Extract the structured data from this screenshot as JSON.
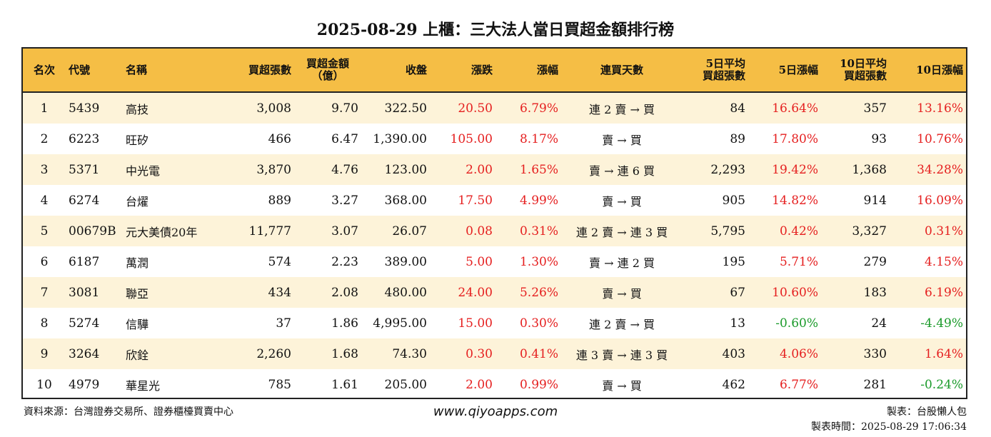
{
  "title": "2025-08-29 上櫃：三大法人當日買超金額排行榜",
  "headers": {
    "rank": "名次",
    "code": "代號",
    "name": "名稱",
    "net_buy_shares": "買超張數",
    "net_buy_amount_l1": "買超金額",
    "net_buy_amount_l2": "（億）",
    "close": "收盤",
    "change": "漲跌",
    "change_pct": "漲幅",
    "streak": "連買天數",
    "avg5_l1": "5日平均",
    "avg5_l2": "買超張數",
    "pct5": "5日漲幅",
    "avg10_l1": "10日平均",
    "avg10_l2": "買超張數",
    "pct10": "10日漲幅"
  },
  "rows": [
    {
      "rank": "1",
      "code": "5439",
      "name": "高技",
      "net_buy_shares": "3,008",
      "net_buy_amount": "9.70",
      "close": "322.50",
      "change": "20.50",
      "change_pct": "6.79%",
      "streak": "連 2 賣 → 買",
      "avg5": "84",
      "pct5": "16.64%",
      "avg10": "357",
      "pct10": "13.16%"
    },
    {
      "rank": "2",
      "code": "6223",
      "name": "旺矽",
      "net_buy_shares": "466",
      "net_buy_amount": "6.47",
      "close": "1,390.00",
      "change": "105.00",
      "change_pct": "8.17%",
      "streak": "賣 → 買",
      "avg5": "89",
      "pct5": "17.80%",
      "avg10": "93",
      "pct10": "10.76%"
    },
    {
      "rank": "3",
      "code": "5371",
      "name": "中光電",
      "net_buy_shares": "3,870",
      "net_buy_amount": "4.76",
      "close": "123.00",
      "change": "2.00",
      "change_pct": "1.65%",
      "streak": "賣 → 連 6 買",
      "avg5": "2,293",
      "pct5": "19.42%",
      "avg10": "1,368",
      "pct10": "34.28%"
    },
    {
      "rank": "4",
      "code": "6274",
      "name": "台燿",
      "net_buy_shares": "889",
      "net_buy_amount": "3.27",
      "close": "368.00",
      "change": "17.50",
      "change_pct": "4.99%",
      "streak": "賣 → 買",
      "avg5": "905",
      "pct5": "14.82%",
      "avg10": "914",
      "pct10": "16.09%"
    },
    {
      "rank": "5",
      "code": "00679B",
      "name": "元大美債20年",
      "net_buy_shares": "11,777",
      "net_buy_amount": "3.07",
      "close": "26.07",
      "change": "0.08",
      "change_pct": "0.31%",
      "streak": "連 2 賣 → 連 3 買",
      "avg5": "5,795",
      "pct5": "0.42%",
      "avg10": "3,327",
      "pct10": "0.31%"
    },
    {
      "rank": "6",
      "code": "6187",
      "name": "萬潤",
      "net_buy_shares": "574",
      "net_buy_amount": "2.23",
      "close": "389.00",
      "change": "5.00",
      "change_pct": "1.30%",
      "streak": "賣 → 連 2 買",
      "avg5": "195",
      "pct5": "5.71%",
      "avg10": "279",
      "pct10": "4.15%"
    },
    {
      "rank": "7",
      "code": "3081",
      "name": "聯亞",
      "net_buy_shares": "434",
      "net_buy_amount": "2.08",
      "close": "480.00",
      "change": "24.00",
      "change_pct": "5.26%",
      "streak": "賣 → 買",
      "avg5": "67",
      "pct5": "10.60%",
      "avg10": "183",
      "pct10": "6.19%"
    },
    {
      "rank": "8",
      "code": "5274",
      "name": "信驊",
      "net_buy_shares": "37",
      "net_buy_amount": "1.86",
      "close": "4,995.00",
      "change": "15.00",
      "change_pct": "0.30%",
      "streak": "連 2 賣 → 買",
      "avg5": "13",
      "pct5": "-0.60%",
      "avg10": "24",
      "pct10": "-4.49%"
    },
    {
      "rank": "9",
      "code": "3264",
      "name": "欣銓",
      "net_buy_shares": "2,260",
      "net_buy_amount": "1.68",
      "close": "74.30",
      "change": "0.30",
      "change_pct": "0.41%",
      "streak": "連 3 賣 → 連 3 買",
      "avg5": "403",
      "pct5": "4.06%",
      "avg10": "330",
      "pct10": "1.64%"
    },
    {
      "rank": "10",
      "code": "4979",
      "name": "華星光",
      "net_buy_shares": "785",
      "net_buy_amount": "1.61",
      "close": "205.00",
      "change": "2.00",
      "change_pct": "0.99%",
      "streak": "賣 → 買",
      "avg5": "462",
      "pct5": "6.77%",
      "avg10": "281",
      "pct10": "-0.24%"
    }
  ],
  "footer": {
    "source": "資料來源：台灣證券交易所、證券櫃檯買賣中心",
    "website": "www.qiyoapps.com",
    "maker": "製表：台股懶人包",
    "made_time": "製表時間：2025-08-29 17:06:34"
  },
  "colors": {
    "header_bg": "#f5be45",
    "row_stripe": "#fdf3d9",
    "up": "#e51f1f",
    "down": "#1a9a2a"
  }
}
